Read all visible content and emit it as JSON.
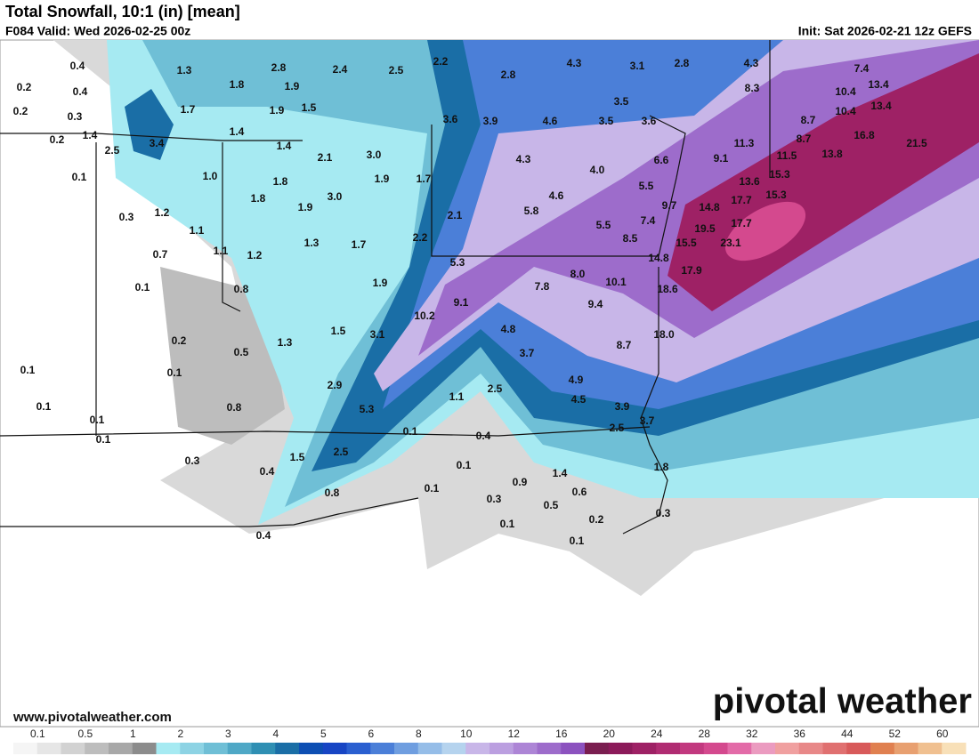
{
  "header": {
    "title": "Total Snowfall, 10:1 (in) [mean]",
    "valid": "F084 Valid: Wed 2026-02-25 00z",
    "init": "Init: Sat 2026-02-21 12z GEFS"
  },
  "map": {
    "labels": [
      "0.4",
      "1.3",
      "2.8",
      "2.4",
      "2.5",
      "2.2",
      "2.8",
      "4.3",
      "3.1",
      "2.8",
      "4.3",
      "7.4",
      "0.2",
      "0.4",
      "1.8",
      "1.9",
      "8.3",
      "10.4",
      "13.4",
      "1.7",
      "1.9",
      "1.5",
      "3.5",
      "10.4",
      "13.4",
      "0.2",
      "0.3",
      "3.6",
      "3.9",
      "4.6",
      "3.5",
      "3.6",
      "8.7",
      "0.2",
      "1.4",
      "3.4",
      "1.4",
      "1.4",
      "11.3",
      "8.7",
      "16.8",
      "21.5",
      "2.5",
      "2.1",
      "3.0",
      "4.3",
      "6.6",
      "9.1",
      "11.5",
      "13.8",
      "0.1",
      "1.0",
      "1.8",
      "1.9",
      "1.7",
      "4.0",
      "5.5",
      "15.3",
      "13.6",
      "1.8",
      "3.0",
      "4.6",
      "9.7",
      "14.8",
      "17.7",
      "15.3",
      "0.3",
      "1.2",
      "1.9",
      "2.1",
      "5.8",
      "7.4",
      "19.5",
      "17.7",
      "1.1",
      "1.3",
      "1.7",
      "2.2",
      "5.5",
      "8.5",
      "15.5",
      "23.1",
      "0.7",
      "1.1",
      "1.2",
      "5.3",
      "14.8",
      "0.1",
      "0.8",
      "1.9",
      "8.0",
      "7.8",
      "10.1",
      "17.9",
      "18.6",
      "9.1",
      "9.4",
      "10.2",
      "0.2",
      "0.5",
      "1.3",
      "1.5",
      "3.1",
      "4.8",
      "8.7",
      "18.0",
      "0.1",
      "0.1",
      "3.7",
      "4.9",
      "2.9",
      "2.5",
      "1.1",
      "4.5",
      "3.9",
      "0.1",
      "0.8",
      "5.3",
      "3.7",
      "0.1",
      "0.1",
      "0.4",
      "2.5",
      "0.1",
      "1.5",
      "2.5",
      "0.3",
      "0.4",
      "0.1",
      "1.4",
      "1.8",
      "0.9",
      "0.1",
      "0.6",
      "0.8",
      "0.3",
      "0.5",
      "0.3",
      "0.2",
      "0.1",
      "0.4",
      "0.1"
    ]
  },
  "legend": {
    "ticks": [
      0.1,
      0.5,
      1,
      2,
      3,
      4,
      5,
      6,
      8,
      10,
      12,
      16,
      20,
      24,
      28,
      32,
      36,
      44,
      52,
      60
    ],
    "colors": [
      "#f5f5f5",
      "#e6e6e6",
      "#d2d2d2",
      "#bdbdbd",
      "#a8a8a8",
      "#8c8c8c",
      "#a6eaf2",
      "#8dd3e4",
      "#6fbfd6",
      "#4fa8c6",
      "#2f8fb3",
      "#1a6ea6",
      "#0d4fb3",
      "#1745c4",
      "#2a5fd0",
      "#4b7fd8",
      "#6f9ee0",
      "#95bde8",
      "#b5d3ee",
      "#c8b6e8",
      "#bb9fe0",
      "#ad85d6",
      "#9d6ccb",
      "#8c52bf",
      "#7a1e50",
      "#8c1a5a",
      "#9e2165",
      "#b02c72",
      "#c2397f",
      "#d4498e",
      "#e36ba8",
      "#eb9bc0",
      "#f0a0a0",
      "#e88888",
      "#e07070",
      "#d85a5a",
      "#e08050",
      "#e8a070",
      "#f0c090",
      "#f8e0b8"
    ]
  },
  "footer": {
    "site": "www.pivotalweather.com",
    "brand": "pivotal weather"
  }
}
